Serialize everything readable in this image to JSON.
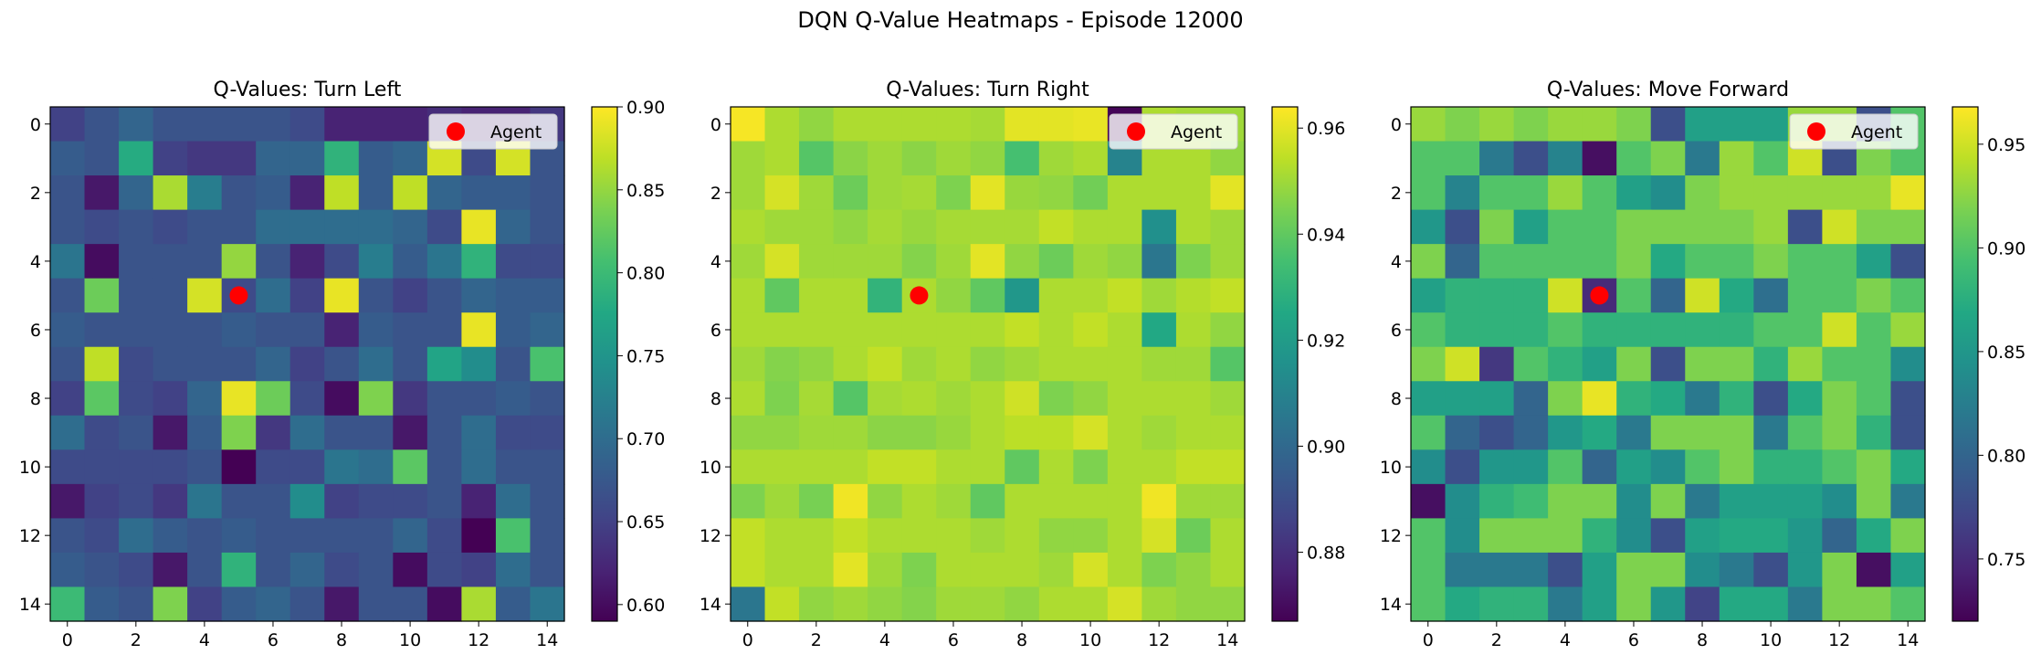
{
  "suptitle": "DQN Q-Value Heatmaps - Episode 12000",
  "colormap": [
    "#440154",
    "#482475",
    "#414487",
    "#355f8d",
    "#2a788e",
    "#21918c",
    "#22a884",
    "#44bf70",
    "#7ad151",
    "#bddf26",
    "#fde725"
  ],
  "marker_color": "#ff0000",
  "chart_data": [
    {
      "type": "heatmap",
      "title": "Q-Values: Turn Left",
      "xlabel": "",
      "ylabel": "",
      "xticks": [
        0,
        2,
        4,
        6,
        8,
        10,
        12,
        14
      ],
      "yticks": [
        0,
        2,
        4,
        6,
        8,
        10,
        12,
        14
      ],
      "vmin": 0.59,
      "vmax": 0.9,
      "colorbar_ticks": [
        0.6,
        0.65,
        0.7,
        0.75,
        0.8,
        0.85,
        0.9
      ],
      "colorbar_tick_labels": [
        "0.60",
        "0.65",
        "0.70",
        "0.75",
        "0.80",
        "0.85",
        "0.90"
      ],
      "legend": {
        "label": "Agent",
        "position": "upper-right"
      },
      "agent": {
        "x": 5,
        "y": 5
      },
      "grid": [
        [
          0.65,
          0.67,
          0.69,
          0.67,
          0.67,
          0.67,
          0.67,
          0.66,
          0.62,
          0.62,
          0.62,
          0.63,
          0.62,
          0.62,
          0.64
        ],
        [
          0.68,
          0.67,
          0.78,
          0.65,
          0.64,
          0.64,
          0.69,
          0.69,
          0.79,
          0.68,
          0.69,
          0.88,
          0.66,
          0.88,
          0.67
        ],
        [
          0.67,
          0.61,
          0.69,
          0.86,
          0.72,
          0.67,
          0.68,
          0.62,
          0.87,
          0.68,
          0.87,
          0.69,
          0.68,
          0.68,
          0.67
        ],
        [
          0.67,
          0.66,
          0.67,
          0.66,
          0.67,
          0.67,
          0.7,
          0.7,
          0.7,
          0.7,
          0.69,
          0.66,
          0.89,
          0.69,
          0.67
        ],
        [
          0.71,
          0.6,
          0.67,
          0.67,
          0.67,
          0.85,
          0.67,
          0.62,
          0.66,
          0.72,
          0.68,
          0.71,
          0.79,
          0.66,
          0.66
        ],
        [
          0.67,
          0.83,
          0.67,
          0.67,
          0.88,
          0.66,
          0.7,
          0.65,
          0.89,
          0.67,
          0.65,
          0.67,
          0.69,
          0.68,
          0.68
        ],
        [
          0.68,
          0.67,
          0.67,
          0.67,
          0.67,
          0.68,
          0.67,
          0.67,
          0.62,
          0.68,
          0.67,
          0.67,
          0.89,
          0.68,
          0.69
        ],
        [
          0.67,
          0.87,
          0.66,
          0.67,
          0.67,
          0.67,
          0.69,
          0.65,
          0.67,
          0.7,
          0.67,
          0.77,
          0.74,
          0.67,
          0.81
        ],
        [
          0.65,
          0.82,
          0.66,
          0.65,
          0.69,
          0.89,
          0.83,
          0.66,
          0.6,
          0.84,
          0.64,
          0.67,
          0.67,
          0.68,
          0.67
        ],
        [
          0.7,
          0.66,
          0.67,
          0.61,
          0.68,
          0.84,
          0.64,
          0.7,
          0.67,
          0.67,
          0.61,
          0.67,
          0.7,
          0.66,
          0.66
        ],
        [
          0.66,
          0.66,
          0.66,
          0.66,
          0.67,
          0.59,
          0.66,
          0.66,
          0.71,
          0.7,
          0.82,
          0.67,
          0.7,
          0.67,
          0.67
        ],
        [
          0.61,
          0.65,
          0.66,
          0.64,
          0.71,
          0.67,
          0.67,
          0.74,
          0.65,
          0.66,
          0.66,
          0.67,
          0.62,
          0.7,
          0.67
        ],
        [
          0.67,
          0.66,
          0.7,
          0.68,
          0.67,
          0.68,
          0.67,
          0.67,
          0.67,
          0.67,
          0.69,
          0.66,
          0.59,
          0.81,
          0.67
        ],
        [
          0.68,
          0.67,
          0.66,
          0.61,
          0.67,
          0.79,
          0.67,
          0.69,
          0.66,
          0.67,
          0.6,
          0.66,
          0.65,
          0.7,
          0.67
        ],
        [
          0.8,
          0.68,
          0.67,
          0.84,
          0.65,
          0.68,
          0.69,
          0.67,
          0.61,
          0.67,
          0.67,
          0.6,
          0.86,
          0.68,
          0.71
        ]
      ]
    },
    {
      "type": "heatmap",
      "title": "Q-Values: Turn Right",
      "xlabel": "",
      "ylabel": "",
      "xticks": [
        0,
        2,
        4,
        6,
        8,
        10,
        12,
        14
      ],
      "yticks": [
        0,
        2,
        4,
        6,
        8,
        10,
        12,
        14
      ],
      "vmin": 0.867,
      "vmax": 0.964,
      "colorbar_ticks": [
        0.88,
        0.9,
        0.92,
        0.94,
        0.96
      ],
      "colorbar_tick_labels": [
        "0.88",
        "0.90",
        "0.92",
        "0.94",
        "0.96"
      ],
      "legend": {
        "label": "Agent",
        "position": "upper-right"
      },
      "agent": {
        "x": 5,
        "y": 5
      },
      "grid": [
        [
          0.963,
          0.952,
          0.948,
          0.952,
          0.952,
          0.952,
          0.952,
          0.951,
          0.96,
          0.96,
          0.961,
          0.868,
          0.952,
          0.951,
          0.95
        ],
        [
          0.95,
          0.952,
          0.938,
          0.947,
          0.95,
          0.947,
          0.95,
          0.948,
          0.935,
          0.95,
          0.952,
          0.91,
          0.952,
          0.952,
          0.948
        ],
        [
          0.95,
          0.958,
          0.95,
          0.942,
          0.95,
          0.951,
          0.945,
          0.96,
          0.949,
          0.948,
          0.943,
          0.952,
          0.952,
          0.952,
          0.96
        ],
        [
          0.952,
          0.95,
          0.95,
          0.948,
          0.951,
          0.949,
          0.951,
          0.951,
          0.951,
          0.955,
          0.952,
          0.952,
          0.915,
          0.952,
          0.95
        ],
        [
          0.95,
          0.958,
          0.95,
          0.95,
          0.95,
          0.946,
          0.95,
          0.96,
          0.948,
          0.942,
          0.95,
          0.948,
          0.905,
          0.945,
          0.95
        ],
        [
          0.952,
          0.94,
          0.952,
          0.952,
          0.93,
          0.952,
          0.948,
          0.94,
          0.918,
          0.952,
          0.952,
          0.955,
          0.95,
          0.953,
          0.955
        ],
        [
          0.952,
          0.952,
          0.952,
          0.952,
          0.952,
          0.952,
          0.952,
          0.952,
          0.955,
          0.952,
          0.955,
          0.952,
          0.925,
          0.952,
          0.948
        ],
        [
          0.95,
          0.946,
          0.948,
          0.952,
          0.955,
          0.95,
          0.952,
          0.948,
          0.95,
          0.952,
          0.952,
          0.952,
          0.95,
          0.95,
          0.938
        ],
        [
          0.952,
          0.945,
          0.951,
          0.938,
          0.951,
          0.952,
          0.95,
          0.952,
          0.957,
          0.945,
          0.948,
          0.952,
          0.952,
          0.952,
          0.95
        ],
        [
          0.948,
          0.948,
          0.95,
          0.95,
          0.947,
          0.947,
          0.949,
          0.952,
          0.954,
          0.954,
          0.958,
          0.952,
          0.95,
          0.952,
          0.952
        ],
        [
          0.952,
          0.952,
          0.952,
          0.952,
          0.955,
          0.955,
          0.952,
          0.952,
          0.94,
          0.952,
          0.945,
          0.952,
          0.952,
          0.955,
          0.955
        ],
        [
          0.945,
          0.95,
          0.944,
          0.962,
          0.948,
          0.952,
          0.95,
          0.94,
          0.952,
          0.952,
          0.952,
          0.952,
          0.962,
          0.95,
          0.95
        ],
        [
          0.955,
          0.952,
          0.952,
          0.955,
          0.952,
          0.952,
          0.952,
          0.95,
          0.952,
          0.948,
          0.948,
          0.952,
          0.958,
          0.942,
          0.952
        ],
        [
          0.955,
          0.952,
          0.952,
          0.96,
          0.95,
          0.945,
          0.952,
          0.952,
          0.952,
          0.95,
          0.958,
          0.952,
          0.945,
          0.948,
          0.952
        ],
        [
          0.905,
          0.955,
          0.948,
          0.95,
          0.948,
          0.946,
          0.95,
          0.95,
          0.948,
          0.952,
          0.952,
          0.958,
          0.95,
          0.948,
          0.948
        ]
      ]
    },
    {
      "type": "heatmap",
      "title": "Q-Values: Move Forward",
      "xlabel": "",
      "ylabel": "",
      "xticks": [
        0,
        2,
        4,
        6,
        8,
        10,
        12,
        14
      ],
      "yticks": [
        0,
        2,
        4,
        6,
        8,
        10,
        12,
        14
      ],
      "vmin": 0.72,
      "vmax": 0.968,
      "colorbar_ticks": [
        0.75,
        0.8,
        0.85,
        0.9,
        0.95
      ],
      "colorbar_tick_labels": [
        "0.75",
        "0.80",
        "0.85",
        "0.90",
        "0.95"
      ],
      "legend": {
        "label": "Agent",
        "position": "upper-right"
      },
      "agent": {
        "x": 5,
        "y": 5
      },
      "grid": [
        [
          0.93,
          0.92,
          0.93,
          0.92,
          0.93,
          0.93,
          0.92,
          0.78,
          0.86,
          0.86,
          0.86,
          0.93,
          0.93,
          0.78,
          0.9
        ],
        [
          0.9,
          0.9,
          0.82,
          0.78,
          0.83,
          0.73,
          0.9,
          0.92,
          0.82,
          0.93,
          0.9,
          0.95,
          0.78,
          0.92,
          0.9
        ],
        [
          0.9,
          0.83,
          0.9,
          0.9,
          0.93,
          0.9,
          0.86,
          0.84,
          0.92,
          0.93,
          0.93,
          0.93,
          0.93,
          0.93,
          0.96
        ],
        [
          0.85,
          0.78,
          0.92,
          0.86,
          0.9,
          0.9,
          0.92,
          0.92,
          0.92,
          0.92,
          0.93,
          0.78,
          0.95,
          0.92,
          0.92
        ],
        [
          0.92,
          0.8,
          0.9,
          0.9,
          0.9,
          0.9,
          0.92,
          0.87,
          0.9,
          0.9,
          0.92,
          0.9,
          0.9,
          0.86,
          0.78
        ],
        [
          0.86,
          0.88,
          0.88,
          0.88,
          0.95,
          0.75,
          0.9,
          0.8,
          0.95,
          0.87,
          0.81,
          0.9,
          0.9,
          0.92,
          0.9
        ],
        [
          0.9,
          0.88,
          0.88,
          0.88,
          0.9,
          0.88,
          0.88,
          0.88,
          0.88,
          0.88,
          0.9,
          0.9,
          0.95,
          0.9,
          0.93
        ],
        [
          0.92,
          0.95,
          0.76,
          0.9,
          0.88,
          0.86,
          0.92,
          0.78,
          0.92,
          0.92,
          0.88,
          0.93,
          0.9,
          0.9,
          0.84
        ],
        [
          0.86,
          0.86,
          0.86,
          0.8,
          0.92,
          0.96,
          0.88,
          0.87,
          0.82,
          0.88,
          0.78,
          0.87,
          0.92,
          0.9,
          0.78
        ],
        [
          0.9,
          0.8,
          0.78,
          0.8,
          0.85,
          0.87,
          0.82,
          0.92,
          0.92,
          0.92,
          0.82,
          0.9,
          0.92,
          0.88,
          0.78
        ],
        [
          0.84,
          0.78,
          0.85,
          0.85,
          0.9,
          0.8,
          0.86,
          0.84,
          0.9,
          0.92,
          0.88,
          0.88,
          0.9,
          0.92,
          0.87
        ],
        [
          0.73,
          0.84,
          0.88,
          0.89,
          0.92,
          0.92,
          0.84,
          0.92,
          0.82,
          0.86,
          0.86,
          0.86,
          0.84,
          0.92,
          0.82
        ],
        [
          0.9,
          0.84,
          0.92,
          0.92,
          0.92,
          0.88,
          0.84,
          0.78,
          0.86,
          0.87,
          0.87,
          0.85,
          0.8,
          0.87,
          0.92
        ],
        [
          0.9,
          0.82,
          0.82,
          0.82,
          0.78,
          0.86,
          0.92,
          0.92,
          0.84,
          0.82,
          0.78,
          0.85,
          0.92,
          0.73,
          0.86
        ],
        [
          0.9,
          0.87,
          0.88,
          0.88,
          0.82,
          0.86,
          0.92,
          0.85,
          0.77,
          0.87,
          0.87,
          0.82,
          0.92,
          0.92,
          0.9
        ]
      ]
    }
  ]
}
